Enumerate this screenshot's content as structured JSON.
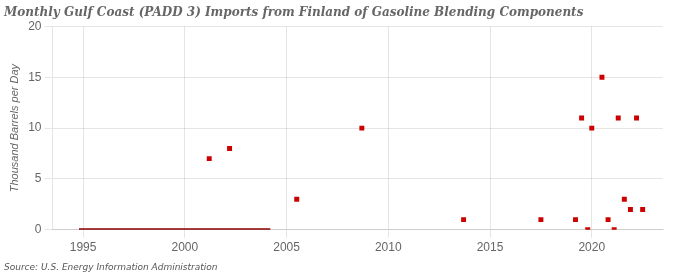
{
  "chart_data": {
    "type": "scatter",
    "title": "Monthly Gulf Coast (PADD 3) Imports from Finland of Gasoline Blending Components",
    "ylabel": "Thousand Barrels per Day",
    "source": "Source: U.S. Energy Information Administration",
    "xlim": [
      1993.5,
      2023.5
    ],
    "xticks": [
      1995,
      2000,
      2005,
      2010,
      2015,
      2020
    ],
    "ylim": [
      0,
      20
    ],
    "yticks": [
      0,
      5,
      10,
      15,
      20
    ],
    "grid": true,
    "series": [
      {
        "type": "line",
        "color": "#8b0000",
        "line_style": "solid",
        "x": [
          1994.8,
          2004.2
        ],
        "values": [
          0,
          0
        ]
      },
      {
        "type": "scatter",
        "color": "#cc0000",
        "marker": "square",
        "x": [
          2001.2,
          2002.2,
          2005.5,
          2008.7,
          2013.7,
          2017.5,
          2019.2,
          2019.5,
          2020.0,
          2020.5,
          2020.8,
          2021.3,
          2021.6,
          2021.9,
          2022.2,
          2022.5
        ],
        "values": [
          7.0,
          8.0,
          3.0,
          10.0,
          1.0,
          1.0,
          1.0,
          11.0,
          10.0,
          15.0,
          1.0,
          11.0,
          3.0,
          2.0,
          11.0,
          2.0
        ]
      },
      {
        "type": "scatter",
        "color": "#cc0000",
        "marker": "square",
        "x": [
          2019.8,
          2021.1
        ],
        "values": [
          0,
          0
        ]
      }
    ]
  }
}
